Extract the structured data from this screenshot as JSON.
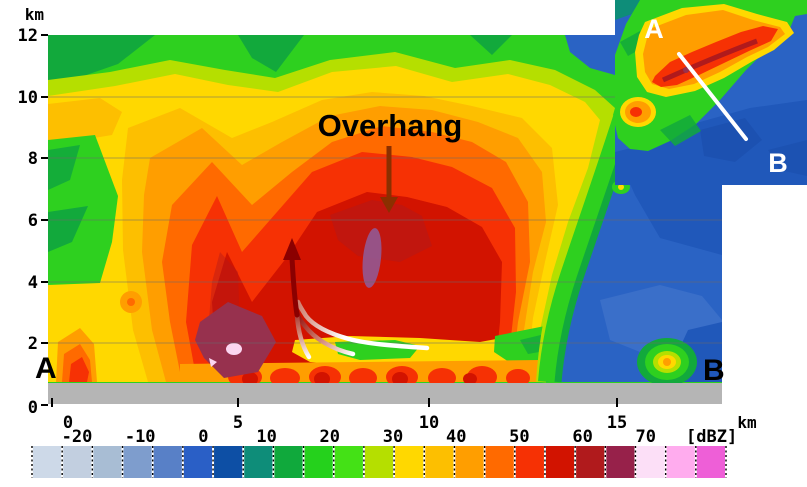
{
  "annotation": {
    "overhang_label": "Overhang"
  },
  "axes": {
    "y": {
      "unit": "km",
      "ticks": [
        "12",
        "10",
        "8",
        "6",
        "4",
        "2",
        "0"
      ]
    },
    "x": {
      "unit": "km",
      "ticks": [
        "0",
        "5",
        "10",
        "15"
      ]
    }
  },
  "endpoints": {
    "left": "A",
    "right": "B"
  },
  "inset": {
    "label_a": "A",
    "label_b": "B"
  },
  "colorbar": {
    "unit_label": "[dBZ]",
    "tick_labels": [
      "-20",
      "-10",
      "0",
      "10",
      "20",
      "30",
      "40",
      "50",
      "60",
      "70"
    ],
    "segment_step_dbz": 5,
    "segment_colors": [
      "#cdd9e8",
      "#c2cfe0",
      "#a8bdd4",
      "#7e9dcd",
      "#5880c7",
      "#2a5fc6",
      "#0d4fa5",
      "#0e8d79",
      "#10a93c",
      "#25d11c",
      "#44e116",
      "#b5df00",
      "#ffd800",
      "#fdbf00",
      "#ff9e00",
      "#ff6a00",
      "#f63104",
      "#d21300",
      "#b01a1c",
      "#97214a",
      "#fcdff7",
      "#ffacee",
      "#ee5fd7"
    ]
  },
  "palette": {
    "green": "#2ed01f",
    "green_dark": "#12a93c",
    "yellow_green": "#b5df00",
    "yellow": "#ffd800",
    "amber": "#fdbf00",
    "orange": "#ff9e00",
    "orange_red": "#ff6a00",
    "red": "#f63104",
    "red_dark": "#d21300",
    "brick": "#b01a1c",
    "maroon": "#97314e",
    "pink_core": "#fbd6f0",
    "purple": "#8f5d9b",
    "blue": "#2a63c4",
    "blue_dark": "#2058ba",
    "blue_deep": "#1b4fae",
    "blue_light": "#3d71ca",
    "teal": "#0e8d79",
    "ground": "#b5b5b5",
    "grid": "#6a6a6a",
    "text": "#000000",
    "white": "#ffffff",
    "annotation_arrow": "#8b2f00",
    "streamline_dark": "#8b0000",
    "streamline_mid": "#cf8070",
    "streamline_light": "#ffffff"
  },
  "chart_data": {
    "type": "heatmap",
    "title": "",
    "xlabel": "km",
    "ylabel": "km",
    "xlim": [
      0,
      17.7
    ],
    "ylim": [
      0,
      12
    ],
    "x_ticks": [
      0,
      5,
      10,
      15
    ],
    "y_ticks": [
      0,
      2,
      4,
      6,
      8,
      10,
      12
    ],
    "colorbar_units": "[dBZ]",
    "colorbar_ticks": [
      -20,
      -10,
      0,
      10,
      20,
      30,
      40,
      50,
      60,
      70
    ],
    "colorbar_step_dbz": 5,
    "cross_section_endpoints": [
      "A",
      "B"
    ],
    "annotations": [
      {
        "text": "Overhang",
        "arrow_points_to_km": {
          "x": 9.0,
          "y": 6.3
        }
      }
    ],
    "features": [
      {
        "name": "echo top >20 dBZ",
        "height_km": 12
      },
      {
        "name": "overhang core 50-60 dBZ aloft",
        "x_km": [
          4,
          12.5
        ],
        "z_km": [
          2,
          7
        ]
      },
      {
        "name": "surface core >60 dBZ with >65 dBZ pixels",
        "x_km": [
          4,
          6.5
        ],
        "z_km": [
          0.2,
          2
        ]
      },
      {
        "name": "weak echo channel under overhang",
        "x_km": [
          7,
          14
        ],
        "z_km": [
          0.7,
          1.5
        ]
      },
      {
        "name": "low reflectivity inflow region <30 dBZ",
        "x_km": [
          13,
          17.7
        ],
        "z_km": [
          0,
          7
        ]
      },
      {
        "name": "inflow streamlines turning into updraft",
        "x_km": [
          6.5,
          10
        ],
        "z_km": [
          1,
          4.5
        ]
      }
    ],
    "inset": {
      "description": "plan-view reflectivity with cross-section line from A (northwest) to B (southeast)"
    }
  }
}
